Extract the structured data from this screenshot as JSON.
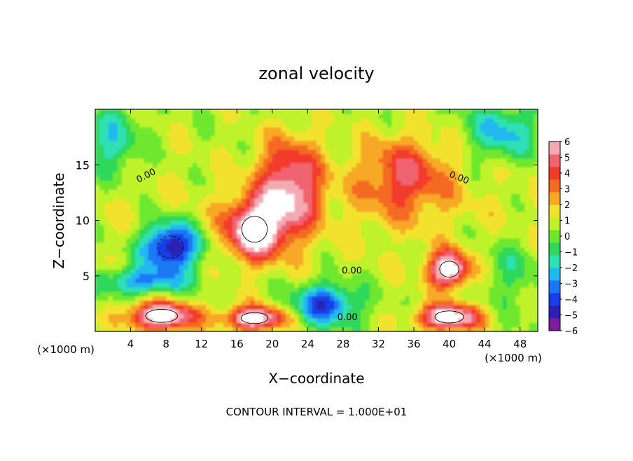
{
  "chart_data": {
    "type": "heatmap",
    "title": "zonal velocity",
    "xlabel": "X−coordinate",
    "ylabel": "Z−coordinate",
    "x_unit": "(×1000 m)",
    "x_unit_right": "(×1000 m)",
    "xlim": [
      0,
      50
    ],
    "ylim": [
      0,
      20
    ],
    "x_ticks": [
      "4",
      "8",
      "12",
      "16",
      "20",
      "24",
      "28",
      "32",
      "36",
      "40",
      "44",
      "48"
    ],
    "x_tick_values": [
      4,
      8,
      12,
      16,
      20,
      24,
      28,
      32,
      36,
      40,
      44,
      48
    ],
    "y_ticks": [
      "5",
      "10",
      "15"
    ],
    "y_tick_values": [
      5,
      10,
      15
    ],
    "colorbar": {
      "labels": [
        "6",
        "5",
        "4",
        "3",
        "2",
        "1",
        "0",
        "−1",
        "−2",
        "−3",
        "−4",
        "−5",
        "−6"
      ],
      "min": -6,
      "max": 6,
      "colors": [
        "#7a1d9e",
        "#2a22b4",
        "#1440e6",
        "#1a78f5",
        "#22b8f0",
        "#2ee0b4",
        "#2ed85a",
        "#6ee82e",
        "#bff22a",
        "#f2e22e",
        "#f7a826",
        "#f56a22",
        "#f23a2a",
        "#f06470",
        "#f4aab2"
      ]
    },
    "contour_labels": [
      "0.00",
      "0.00",
      "0.00",
      "0.00"
    ],
    "footer": "CONTOUR INTERVAL = 1.000E+01",
    "features": [
      {
        "x": 8.5,
        "z": 7.6,
        "value": -6.5,
        "sx": 3.2,
        "sz": 2.2
      },
      {
        "x": 18.0,
        "z": 9.2,
        "value": 6.5,
        "sx": 3.2,
        "sz": 2.6
      },
      {
        "x": 40.0,
        "z": 5.6,
        "value": 6.5,
        "sx": 2.4,
        "sz": 1.6
      },
      {
        "x": 7.5,
        "z": 1.4,
        "value": 6.5,
        "sx": 4.0,
        "sz": 1.3
      },
      {
        "x": 18.0,
        "z": 1.2,
        "value": 6.5,
        "sx": 3.4,
        "sz": 1.1
      },
      {
        "x": 40.0,
        "z": 1.3,
        "value": 6.5,
        "sx": 3.6,
        "sz": 1.2
      },
      {
        "x": 22.0,
        "z": 13.0,
        "value": 5.0,
        "sx": 3.5,
        "sz": 4.2
      },
      {
        "x": 35.0,
        "z": 14.0,
        "value": 3.5,
        "sx": 5.0,
        "sz": 3.5
      },
      {
        "x": 26.0,
        "z": 2.5,
        "value": -4.8,
        "sx": 3.5,
        "sz": 1.8
      },
      {
        "x": 46.0,
        "z": 18.0,
        "value": -3.0,
        "sx": 4.0,
        "sz": 2.5
      },
      {
        "x": 2.0,
        "z": 17.0,
        "value": -2.6,
        "sx": 3.0,
        "sz": 3.0
      },
      {
        "x": 5.0,
        "z": 4.5,
        "value": -3.5,
        "sx": 5.0,
        "sz": 1.2
      },
      {
        "x": 47.0,
        "z": 5.5,
        "value": -1.5,
        "sx": 3.5,
        "sz": 3.0
      }
    ]
  }
}
